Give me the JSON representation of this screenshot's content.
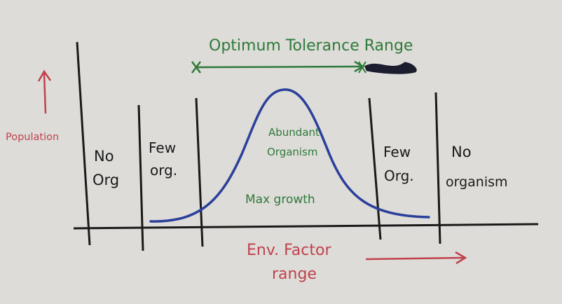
{
  "diagram": {
    "title": "Optimum Tolerance Range",
    "y_axis_label": "Population",
    "x_axis_label_line1": "Env. Factor",
    "x_axis_label_line2": "range",
    "zones": {
      "left_none_line1": "No",
      "left_none_line2": "Org",
      "left_few_line1": "Few",
      "left_few_line2": "org.",
      "center_line1": "Abundant",
      "center_line2": "Organism",
      "center_line3": "Max growth",
      "right_few_line1": "Few",
      "right_few_line2": "Org.",
      "right_none_line1": "No",
      "right_none_line2": "organism"
    }
  },
  "colors": {
    "paper": "#dddcd8",
    "ink_black": "#1a1a1a",
    "ink_green": "#2f7a3a",
    "ink_red": "#c0424d",
    "ink_blue": "#2a3f9a"
  }
}
